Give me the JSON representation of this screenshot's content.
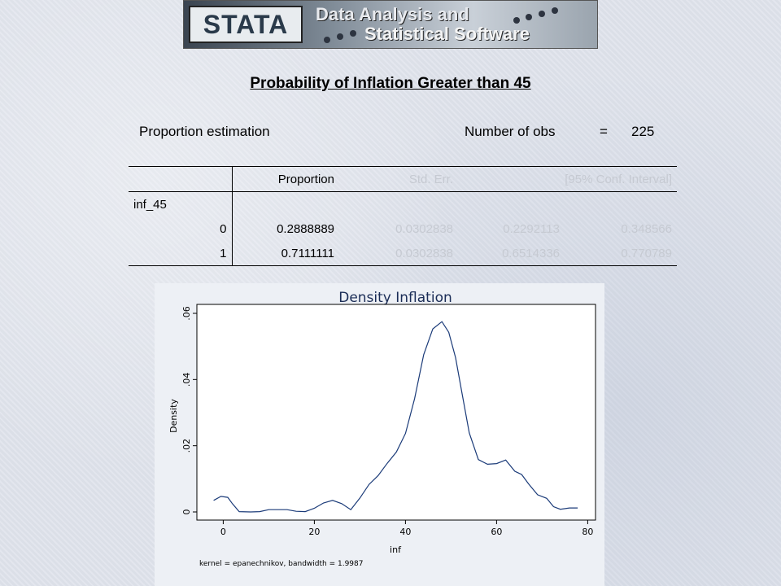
{
  "banner": {
    "logo": "STATA",
    "line1": "Data Analysis and",
    "line2": "Statistical Software"
  },
  "title": "Probability of Inflation Greater than 45",
  "header": {
    "left": "Proportion estimation",
    "obs_label": "Number of obs",
    "obs_eq": "=",
    "obs_value": "225"
  },
  "table": {
    "columns": [
      "Proportion",
      "Std. Err.",
      "[95% Conf. Interval]"
    ],
    "group": "inf_45",
    "rows": [
      {
        "level": "0",
        "proportion": "0.2888889",
        "stderr": "0.0302838",
        "lo": "0.2292113",
        "hi": "0.348566"
      },
      {
        "level": "1",
        "proportion": "0.7111111",
        "stderr": "0.0302838",
        "lo": "0.6514336",
        "hi": "0.770789"
      }
    ]
  },
  "chart_data": {
    "type": "line",
    "title": "Density Inflation",
    "xlabel": "inf",
    "ylabel": "Density",
    "note": "kernel = epanechnikov, bandwidth = 1.9987",
    "xlim": [
      -4,
      81
    ],
    "ylim": [
      0,
      0.06
    ],
    "xticks": [
      0,
      20,
      40,
      60,
      80
    ],
    "yticks": [
      0,
      0.02,
      0.04,
      0.06
    ],
    "ytick_labels": [
      "0",
      ".02",
      ".04",
      ".06"
    ],
    "line_color": "#1a3a78",
    "x": [
      -2.1,
      -0.5,
      1,
      2,
      3.5,
      6,
      8,
      10,
      14,
      16,
      18,
      20,
      22,
      24,
      26,
      28,
      30,
      32,
      34,
      36,
      38,
      40,
      42,
      44,
      46,
      48,
      49.5,
      51,
      52.5,
      54,
      56,
      58,
      60,
      62,
      64,
      65.5,
      67,
      69,
      71,
      72.5,
      74,
      76,
      77.8
    ],
    "y": [
      0.0035,
      0.0047,
      0.0044,
      0.0025,
      0.0001,
      0.0,
      0.0001,
      0.0007,
      0.0007,
      0.0002,
      0.0001,
      0.0011,
      0.0027,
      0.0035,
      0.0025,
      0.0007,
      0.0042,
      0.0083,
      0.011,
      0.0147,
      0.0181,
      0.0237,
      0.0342,
      0.0475,
      0.0553,
      0.0575,
      0.0543,
      0.0466,
      0.0352,
      0.0239,
      0.0158,
      0.0144,
      0.0146,
      0.0157,
      0.0123,
      0.0113,
      0.0085,
      0.0052,
      0.0041,
      0.0016,
      0.0008,
      0.0012,
      0.0012
    ]
  }
}
